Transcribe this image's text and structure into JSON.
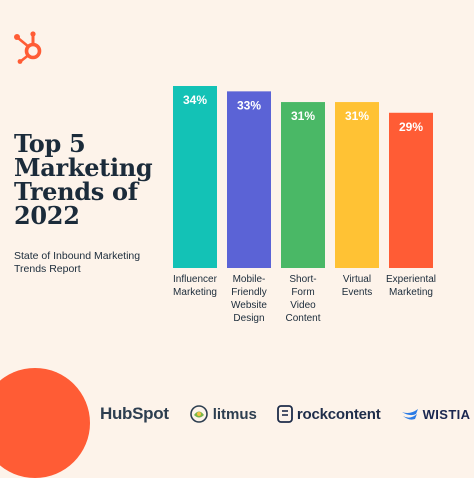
{
  "headline": [
    "Top 5",
    "Marketing",
    "Trends of",
    "2022"
  ],
  "subtitle": [
    "State of Inbound Marketing",
    "Trends Report"
  ],
  "colors": {
    "background": "#fdf3ea",
    "accent": "#ff5c35",
    "text": "#1b2b3a"
  },
  "chart_data": {
    "type": "bar",
    "categories": [
      [
        "Influencer",
        "Marketing"
      ],
      [
        "Mobile-",
        "Friendly",
        "Website",
        "Design"
      ],
      [
        "Short-",
        "Form",
        "Video",
        "Content"
      ],
      [
        "Virtual",
        "Events"
      ],
      [
        "Experiental",
        "Marketing"
      ]
    ],
    "values": [
      34,
      33,
      31,
      31,
      29
    ],
    "data_labels": [
      "34%",
      "33%",
      "31%",
      "31%",
      "29%"
    ],
    "colors": [
      "#13c2b6",
      "#5b63d6",
      "#4ab866",
      "#ffc234",
      "#ff5c35"
    ],
    "ylim": [
      0,
      34
    ],
    "grid": false,
    "legend": "none"
  },
  "sponsors": {
    "hubspot": "HubSpot",
    "litmus": "litmus",
    "rockcontent": "rockcontent",
    "wistia": "WISTIA"
  },
  "icons": {
    "brand_logo": "hubspot-sprocket-icon",
    "litmus": "litmus-icon",
    "rockcontent": "rockcontent-icon",
    "wistia": "wistia-icon"
  }
}
